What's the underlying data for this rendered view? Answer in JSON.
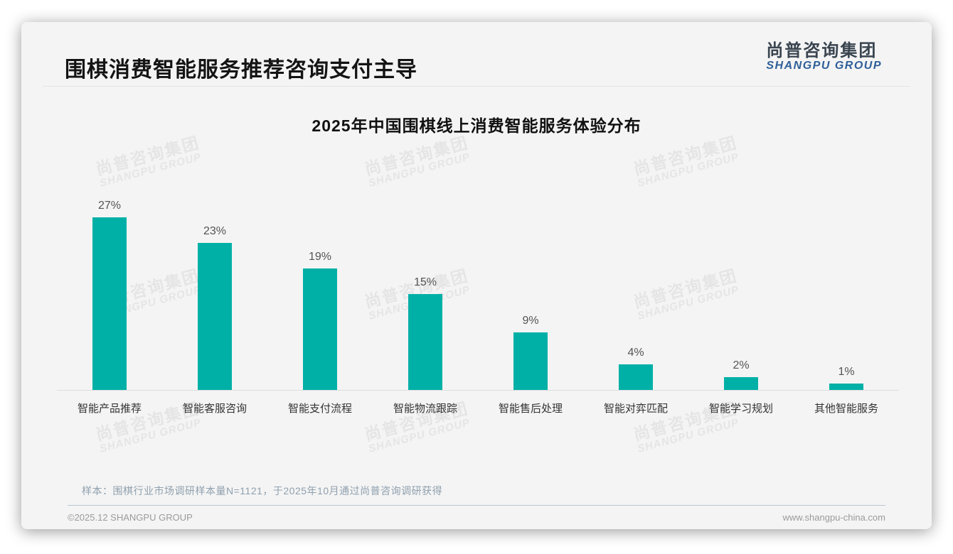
{
  "page": {
    "title": "围棋消费智能服务推荐咨询支付主导",
    "logo": {
      "cn": "尚普咨询集团",
      "en": "SHANGPU GROUP"
    },
    "watermark": {
      "cn": "尚普咨询集团",
      "en": "SHANGPU GROUP"
    },
    "note": "样本：围棋行业市场调研样本量N=1121，于2025年10月通过尚普咨询调研获得",
    "footer": {
      "left": "©2025.12 SHANGPU GROUP",
      "right": "www.shangpu-china.com"
    }
  },
  "chart_data": {
    "type": "bar",
    "title": "2025年中国围棋线上消费智能服务体验分布",
    "categories": [
      "智能产品推荐",
      "智能客服咨询",
      "智能支付流程",
      "智能物流跟踪",
      "智能售后处理",
      "智能对弈匹配",
      "智能学习规划",
      "其他智能服务"
    ],
    "values": [
      27,
      23,
      19,
      15,
      9,
      4,
      2,
      1
    ],
    "unit": "%",
    "value_labels": [
      "27%",
      "23%",
      "19%",
      "15%",
      "9%",
      "4%",
      "2%",
      "1%"
    ],
    "bar_color": "#00b0a6",
    "xlabel": "",
    "ylabel": "",
    "ylim": [
      0,
      30
    ],
    "grid": false,
    "legend": false,
    "value_label_color": "#545454",
    "category_label_color": "#333333"
  }
}
